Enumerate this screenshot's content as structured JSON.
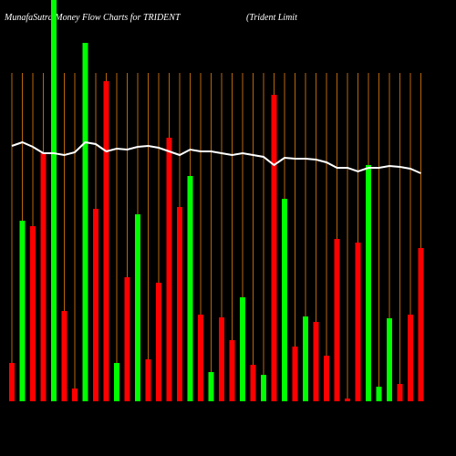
{
  "chart_data": {
    "type": "bar",
    "title": "MunafaSutra  Money Flow  Charts for TRIDENT",
    "subtitle": "(Trident Limit",
    "categories": [
      null,
      null,
      null,
      null,
      null,
      null,
      null,
      null,
      null,
      null,
      null,
      null,
      null,
      null,
      null,
      null,
      null,
      null,
      null,
      null,
      null,
      null,
      null,
      null,
      null,
      null,
      null,
      null,
      null,
      null,
      null,
      null,
      null,
      null,
      null,
      null,
      null,
      null,
      null,
      null
    ],
    "values": [
      42,
      198,
      192,
      272,
      440,
      99,
      14,
      393,
      211,
      351,
      42,
      136,
      205,
      46,
      130,
      289,
      213,
      247,
      95,
      32,
      92,
      67,
      114,
      40,
      29,
      336,
      222,
      60,
      93,
      87,
      50,
      178,
      3,
      174,
      259,
      16,
      91,
      19,
      95,
      168
    ],
    "colors": [
      "#ff0000",
      "#00ff00",
      "#ff0000",
      "#ff0000",
      "#00ff00",
      "#ff0000",
      "#ff0000",
      "#00ff00",
      "#ff0000",
      "#ff0000",
      "#00ff00",
      "#ff0000",
      "#00ff00",
      "#ff0000",
      "#ff0000",
      "#ff0000",
      "#ff0000",
      "#00ff00",
      "#ff0000",
      "#00ff00",
      "#ff0000",
      "#ff0000",
      "#00ff00",
      "#ff0000",
      "#00ff00",
      "#ff0000",
      "#00ff00",
      "#ff0000",
      "#00ff00",
      "#ff0000",
      "#ff0000",
      "#ff0000",
      "#ff0000",
      "#ff0000",
      "#00ff00",
      "#00ff00",
      "#00ff00",
      "#ff0000",
      "#ff0000",
      "#ff0000"
    ],
    "line": {
      "color": "#ffffff",
      "values": [
        280,
        284,
        279,
        272,
        272,
        270,
        273,
        284,
        282,
        274,
        277,
        276,
        279,
        280,
        278,
        274,
        270,
        276,
        274,
        274,
        272,
        270,
        272,
        270,
        268,
        259,
        267,
        266,
        266,
        265,
        262,
        256,
        256,
        252,
        256,
        256,
        258,
        257,
        255,
        250
      ]
    },
    "ylim": [
      0,
      440
    ],
    "grid_color": "#b8660b"
  }
}
